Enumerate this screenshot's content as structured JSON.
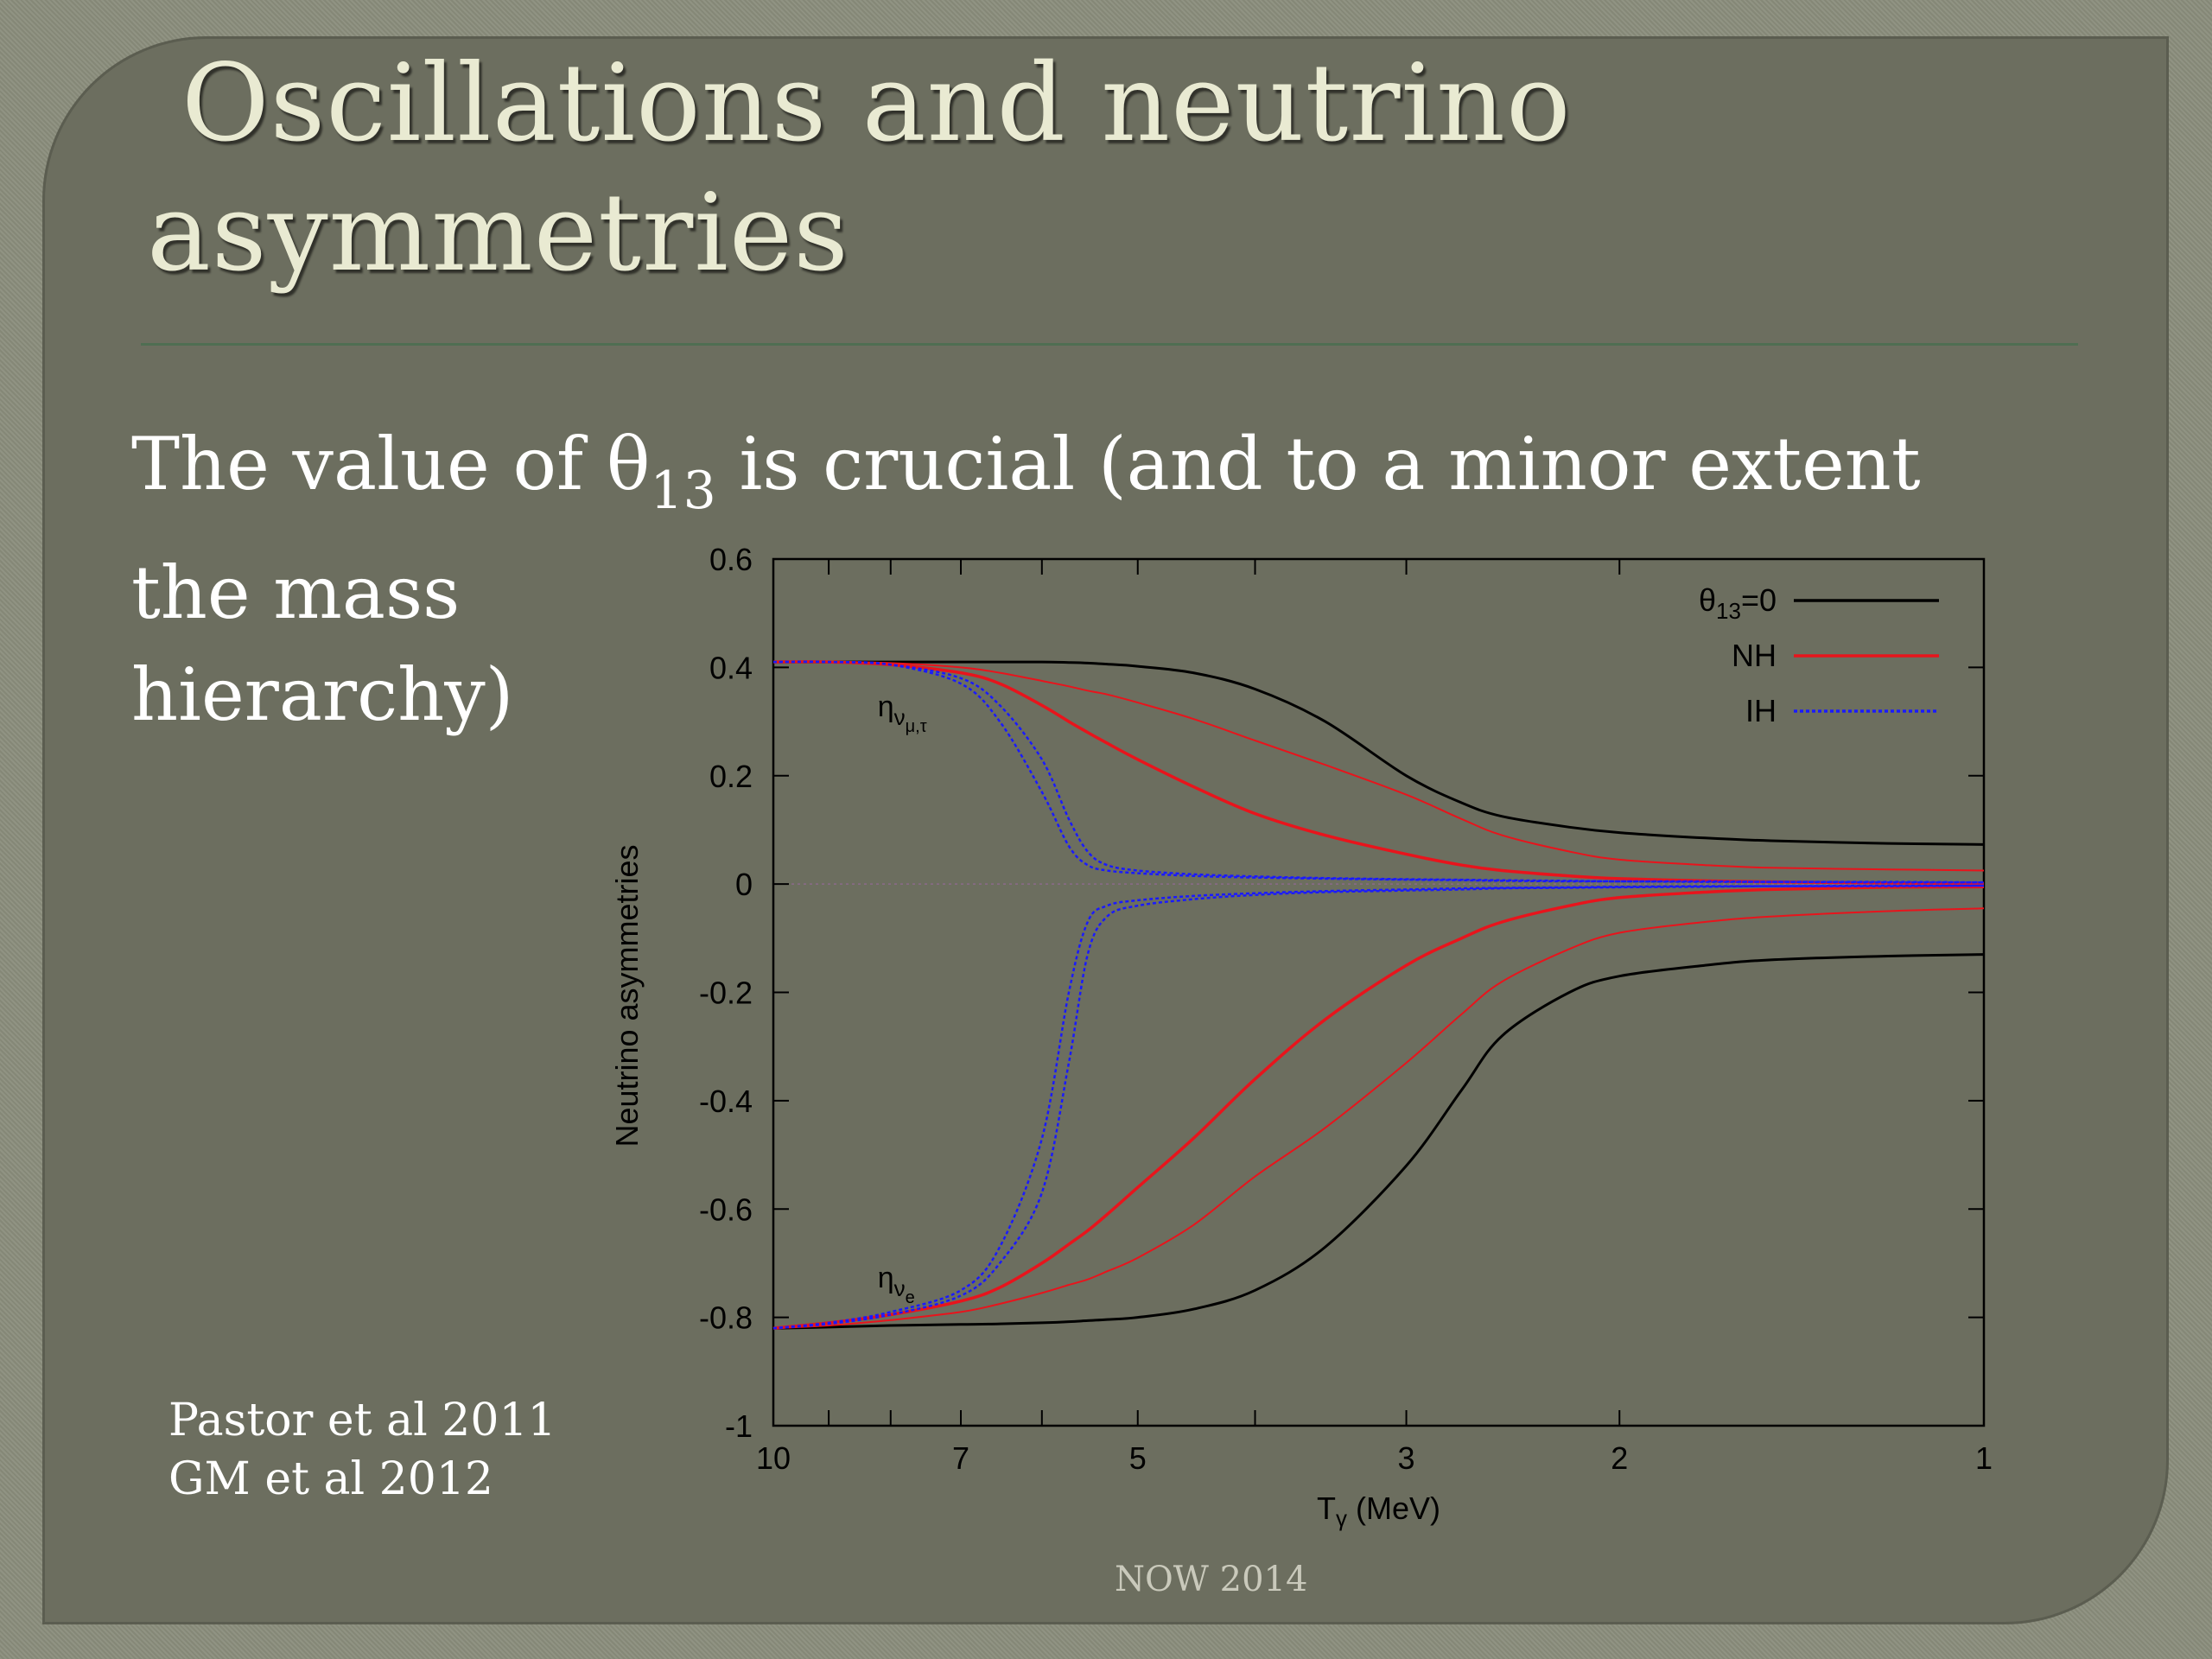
{
  "slide": {
    "title_line1": "Oscillations and neutrino",
    "title_line2": "asymmetries",
    "subtitle_pre": "The value of θ",
    "subtitle_sub": "13",
    "subtitle_post": " is crucial (and to a minor extent",
    "subtitle_line2": "the mass",
    "subtitle_line3": "hierarchy)",
    "citation_1": "Pastor et al 2011",
    "citation_2": "GM et al  2012",
    "footer": "NOW 2014"
  },
  "chart_data": {
    "type": "line",
    "xlabel": "T",
    "xlabel_sub": "γ",
    "xlabel_unit": " (MeV)",
    "ylabel": "Neutrino asymmetries",
    "x_scale": "log",
    "x_reversed": true,
    "xlim": [
      10,
      1
    ],
    "ylim": [
      -1,
      0.6
    ],
    "xticks": [
      10,
      7,
      5,
      3,
      2,
      1
    ],
    "yticks": [
      0.6,
      0.4,
      0.2,
      0,
      -0.2,
      -0.4,
      -0.6,
      -0.8,
      -1
    ],
    "ytick_labels": [
      "0.6",
      "0.4",
      "0.2",
      "0",
      "-0.2",
      "-0.4",
      "-0.6",
      "-0.8",
      "-1"
    ],
    "legend_position": "top-right",
    "legend": [
      {
        "label": "θ13=0",
        "label_main": "θ",
        "label_sub": "13",
        "label_tail": "=0",
        "color": "#000000",
        "dash": "solid"
      },
      {
        "label": "NH",
        "color": "#e8141c",
        "dash": "solid"
      },
      {
        "label": "IH",
        "color": "#1a1aff",
        "dash": "dotted"
      }
    ],
    "annotations": [
      {
        "text": "η",
        "sub": "ν",
        "subsub": "μ,τ",
        "x": 8.2,
        "y": 0.31
      },
      {
        "text": "η",
        "sub": "ν",
        "subsub": "e",
        "x": 8.2,
        "y": -0.745
      }
    ],
    "x": [
      10,
      9,
      8,
      7,
      6.5,
      6,
      5.7,
      5.5,
      5.3,
      5,
      4.5,
      4,
      3.5,
      3,
      2.7,
      2.5,
      2.2,
      2,
      1.7,
      1.5,
      1.2,
      1
    ],
    "series": [
      {
        "name": "θ13=0",
        "group": "mu_tau",
        "color": "#000000",
        "width": 3,
        "dash": "solid",
        "values": [
          0.41,
          0.41,
          0.41,
          0.41,
          0.41,
          0.41,
          0.409,
          0.408,
          0.406,
          0.402,
          0.39,
          0.36,
          0.3,
          0.2,
          0.15,
          0.125,
          0.105,
          0.095,
          0.085,
          0.08,
          0.075,
          0.073
        ]
      },
      {
        "name": "θ13=0",
        "group": "nu_e",
        "color": "#000000",
        "width": 3,
        "dash": "solid",
        "values": [
          -0.82,
          -0.818,
          -0.815,
          -0.813,
          -0.812,
          -0.81,
          -0.808,
          -0.806,
          -0.804,
          -0.8,
          -0.785,
          -0.75,
          -0.67,
          -0.52,
          -0.38,
          -0.28,
          -0.2,
          -0.17,
          -0.15,
          -0.14,
          -0.133,
          -0.13
        ]
      },
      {
        "name": "NH",
        "group": "mu_tau",
        "color": "#e8141c",
        "width": 3.5,
        "dash": "solid",
        "values": [
          0.41,
          0.41,
          0.405,
          0.39,
          0.37,
          0.33,
          0.3,
          0.28,
          0.26,
          0.23,
          0.18,
          0.13,
          0.09,
          0.055,
          0.035,
          0.025,
          0.015,
          0.01,
          0.006,
          0.004,
          0.002,
          0.001
        ]
      },
      {
        "name": "NH",
        "group": "nu_e",
        "color": "#e8141c",
        "width": 3.5,
        "dash": "solid",
        "values": [
          -0.82,
          -0.81,
          -0.795,
          -0.77,
          -0.745,
          -0.7,
          -0.665,
          -0.64,
          -0.61,
          -0.56,
          -0.47,
          -0.36,
          -0.25,
          -0.15,
          -0.1,
          -0.07,
          -0.04,
          -0.025,
          -0.015,
          -0.01,
          -0.006,
          -0.005
        ]
      },
      {
        "name": "NH",
        "group": "mu_tau_thin",
        "color": "#e8141c",
        "width": 2,
        "dash": "solid",
        "values": [
          0.41,
          0.41,
          0.408,
          0.4,
          0.39,
          0.375,
          0.365,
          0.357,
          0.35,
          0.335,
          0.305,
          0.265,
          0.22,
          0.165,
          0.12,
          0.09,
          0.06,
          0.045,
          0.035,
          0.03,
          0.027,
          0.025
        ]
      },
      {
        "name": "NH",
        "group": "nu_e_thin",
        "color": "#e8141c",
        "width": 2,
        "dash": "solid",
        "values": [
          -0.82,
          -0.815,
          -0.805,
          -0.79,
          -0.775,
          -0.755,
          -0.74,
          -0.73,
          -0.715,
          -0.69,
          -0.63,
          -0.54,
          -0.45,
          -0.33,
          -0.24,
          -0.18,
          -0.12,
          -0.09,
          -0.07,
          -0.06,
          -0.05,
          -0.045
        ]
      },
      {
        "name": "IH",
        "group": "mu_tau_a",
        "color": "#1a1aff",
        "width": 2.5,
        "dash": "dotted",
        "values": [
          0.41,
          0.41,
          0.405,
          0.37,
          0.3,
          0.17,
          0.07,
          0.035,
          0.025,
          0.02,
          0.015,
          0.012,
          0.01,
          0.008,
          0.007,
          0.006,
          0.005,
          0.005,
          0.004,
          0.004,
          0.003,
          0.003
        ]
      },
      {
        "name": "IH",
        "group": "mu_tau_b",
        "color": "#1a1aff",
        "width": 2.5,
        "dash": "dotted",
        "values": [
          0.41,
          0.41,
          0.405,
          0.38,
          0.33,
          0.23,
          0.12,
          0.06,
          0.035,
          0.025,
          0.018,
          0.014,
          0.011,
          0.009,
          0.008,
          0.007,
          0.006,
          0.005,
          0.005,
          0.004,
          0.004,
          0.003
        ]
      },
      {
        "name": "IH",
        "group": "nu_e_a",
        "color": "#1a1aff",
        "width": 2.5,
        "dash": "dotted",
        "values": [
          -0.82,
          -0.81,
          -0.79,
          -0.75,
          -0.67,
          -0.47,
          -0.2,
          -0.07,
          -0.04,
          -0.03,
          -0.022,
          -0.017,
          -0.013,
          -0.01,
          -0.008,
          -0.007,
          -0.006,
          -0.005,
          -0.004,
          -0.004,
          -0.003,
          -0.003
        ]
      },
      {
        "name": "IH",
        "group": "nu_e_b",
        "color": "#1a1aff",
        "width": 2.5,
        "dash": "dotted",
        "values": [
          -0.82,
          -0.812,
          -0.795,
          -0.76,
          -0.7,
          -0.57,
          -0.33,
          -0.13,
          -0.06,
          -0.04,
          -0.028,
          -0.02,
          -0.015,
          -0.012,
          -0.01,
          -0.008,
          -0.007,
          -0.006,
          -0.005,
          -0.004,
          -0.004,
          -0.003
        ]
      }
    ]
  }
}
